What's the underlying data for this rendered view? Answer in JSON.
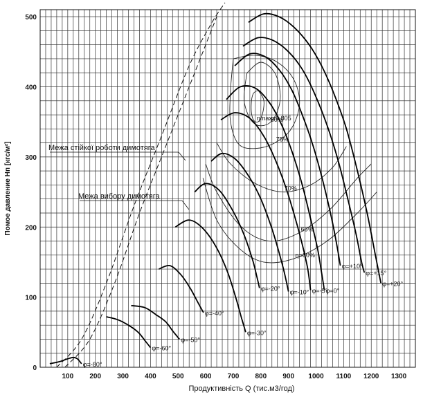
{
  "chart_data": {
    "type": "line",
    "title": "",
    "xlabel": "Продуктивність Q (тис.м3/год)",
    "ylabel": "Помое давление Hп [кгс/м²]",
    "x_ticks": [
      100,
      200,
      300,
      400,
      500,
      600,
      700,
      800,
      900,
      1000,
      1100,
      1200,
      1300
    ],
    "y_ticks": [
      0,
      100,
      200,
      300,
      400,
      500
    ],
    "xlim": [
      0,
      1360
    ],
    "ylim": [
      0,
      510
    ],
    "grid": true,
    "boundary_labels": {
      "stable": "Межа стійкої роботи димотяга",
      "selection": "Межа вибору димотяга"
    },
    "series": [
      {
        "label": "φ=+20°",
        "points": [
          [
            755,
            492
          ],
          [
            810,
            504
          ],
          [
            865,
            500
          ],
          [
            920,
            485
          ],
          [
            975,
            460
          ],
          [
            1020,
            430
          ],
          [
            1065,
            390
          ],
          [
            1110,
            340
          ],
          [
            1150,
            280
          ],
          [
            1185,
            220
          ],
          [
            1215,
            160
          ],
          [
            1235,
            120
          ]
        ]
      },
      {
        "label": "φ=+15°",
        "points": [
          [
            735,
            458
          ],
          [
            790,
            470
          ],
          [
            845,
            466
          ],
          [
            900,
            450
          ],
          [
            950,
            425
          ],
          [
            995,
            390
          ],
          [
            1040,
            345
          ],
          [
            1080,
            295
          ],
          [
            1115,
            240
          ],
          [
            1145,
            190
          ],
          [
            1165,
            150
          ],
          [
            1175,
            135
          ]
        ]
      },
      {
        "label": "φ=+10°",
        "points": [
          [
            705,
            430
          ],
          [
            760,
            447
          ],
          [
            815,
            443
          ],
          [
            865,
            425
          ],
          [
            910,
            397
          ],
          [
            950,
            360
          ],
          [
            990,
            315
          ],
          [
            1025,
            265
          ],
          [
            1055,
            215
          ],
          [
            1075,
            175
          ],
          [
            1088,
            145
          ]
        ]
      },
      {
        "label": "φ=0°",
        "points": [
          [
            675,
            382
          ],
          [
            725,
            400
          ],
          [
            780,
            398
          ],
          [
            830,
            378
          ],
          [
            875,
            346
          ],
          [
            915,
            305
          ],
          [
            950,
            260
          ],
          [
            980,
            212
          ],
          [
            1005,
            170
          ],
          [
            1020,
            135
          ],
          [
            1030,
            110
          ]
        ]
      },
      {
        "label": "φ=-5°",
        "points": [
          [
            655,
            353
          ],
          [
            705,
            363
          ],
          [
            760,
            355
          ],
          [
            810,
            330
          ],
          [
            850,
            298
          ],
          [
            890,
            257
          ],
          [
            925,
            212
          ],
          [
            952,
            172
          ],
          [
            970,
            140
          ],
          [
            980,
            110
          ]
        ]
      },
      {
        "label": "φ=-10°",
        "points": [
          [
            620,
            294
          ],
          [
            660,
            305
          ],
          [
            710,
            296
          ],
          [
            760,
            270
          ],
          [
            800,
            240
          ],
          [
            838,
            200
          ],
          [
            865,
            165
          ],
          [
            885,
            135
          ],
          [
            900,
            108
          ]
        ]
      },
      {
        "label": "φ=-20°",
        "points": [
          [
            560,
            250
          ],
          [
            600,
            262
          ],
          [
            650,
            252
          ],
          [
            700,
            222
          ],
          [
            740,
            188
          ],
          [
            770,
            153
          ],
          [
            785,
            130
          ],
          [
            795,
            113
          ]
        ]
      },
      {
        "label": "φ=-30°",
        "points": [
          [
            490,
            200
          ],
          [
            540,
            210
          ],
          [
            590,
            198
          ],
          [
            640,
            170
          ],
          [
            680,
            135
          ],
          [
            710,
            98
          ],
          [
            730,
            70
          ],
          [
            745,
            50
          ]
        ]
      },
      {
        "label": "φ=-40°",
        "points": [
          [
            430,
            140
          ],
          [
            470,
            145
          ],
          [
            510,
            132
          ],
          [
            545,
            112
          ],
          [
            575,
            90
          ],
          [
            592,
            78
          ]
        ]
      },
      {
        "label": "φ=-50°",
        "points": [
          [
            330,
            88
          ],
          [
            380,
            85
          ],
          [
            420,
            75
          ],
          [
            455,
            65
          ],
          [
            480,
            52
          ],
          [
            505,
            40
          ]
        ]
      },
      {
        "label": "φ=-60°",
        "points": [
          [
            240,
            72
          ],
          [
            280,
            68
          ],
          [
            320,
            60
          ],
          [
            355,
            50
          ],
          [
            380,
            38
          ],
          [
            400,
            28
          ]
        ]
      },
      {
        "label": "φ=-80°",
        "points": [
          [
            35,
            5
          ],
          [
            70,
            8
          ],
          [
            100,
            12
          ],
          [
            120,
            14
          ],
          [
            135,
            12
          ],
          [
            150,
            5
          ]
        ]
      }
    ],
    "efficiency_contours": [
      {
        "label": "ηmax=0.805",
        "points": [
          [
            790,
            395
          ],
          [
            810,
            382
          ],
          [
            808,
            365
          ],
          [
            795,
            352
          ],
          [
            780,
            350
          ],
          [
            768,
            358
          ],
          [
            765,
            375
          ],
          [
            772,
            390
          ],
          [
            790,
            395
          ]
        ]
      },
      {
        "label": "80%",
        "points": [
          [
            750,
            420
          ],
          [
            800,
            435
          ],
          [
            850,
            420
          ],
          [
            870,
            390
          ],
          [
            860,
            365
          ],
          [
            830,
            348
          ],
          [
            790,
            345
          ],
          [
            760,
            355
          ],
          [
            740,
            378
          ],
          [
            742,
            400
          ],
          [
            750,
            420
          ]
        ]
      },
      {
        "label": "75%",
        "points": [
          [
            700,
            440
          ],
          [
            780,
            445
          ],
          [
            860,
            435
          ],
          [
            920,
            410
          ],
          [
            940,
            375
          ],
          [
            910,
            340
          ],
          [
            850,
            320
          ],
          [
            780,
            312
          ],
          [
            720,
            318
          ],
          [
            690,
            350
          ],
          [
            690,
            395
          ],
          [
            700,
            440
          ]
        ]
      },
      {
        "label": "70%",
        "points": [
          [
            640,
            320
          ],
          [
            690,
            290
          ],
          [
            780,
            262
          ],
          [
            880,
            250
          ],
          [
            980,
            260
          ],
          [
            1060,
            285
          ],
          [
            1110,
            315
          ]
        ]
      },
      {
        "label": "65%",
        "points": [
          [
            600,
            290
          ],
          [
            640,
            250
          ],
          [
            730,
            200
          ],
          [
            830,
            180
          ],
          [
            940,
            192
          ],
          [
            1050,
            225
          ],
          [
            1150,
            270
          ],
          [
            1200,
            290
          ]
        ]
      },
      {
        "label": "η=60%",
        "points": [
          [
            590,
            270
          ],
          [
            640,
            210
          ],
          [
            720,
            170
          ],
          [
            810,
            150
          ],
          [
            920,
            155
          ],
          [
            1040,
            180
          ],
          [
            1150,
            220
          ],
          [
            1220,
            250
          ]
        ]
      }
    ],
    "boundaries": [
      {
        "name": "stable",
        "points": [
          [
            60,
            0
          ],
          [
            150,
            40
          ],
          [
            240,
            120
          ],
          [
            340,
            230
          ],
          [
            440,
            330
          ],
          [
            540,
            430
          ],
          [
            620,
            490
          ],
          [
            670,
            520
          ]
        ]
      },
      {
        "name": "selection",
        "points": [
          [
            90,
            0
          ],
          [
            180,
            40
          ],
          [
            270,
            120
          ],
          [
            360,
            220
          ],
          [
            450,
            310
          ],
          [
            540,
            400
          ],
          [
            600,
            460
          ],
          [
            640,
            500
          ]
        ]
      }
    ]
  }
}
